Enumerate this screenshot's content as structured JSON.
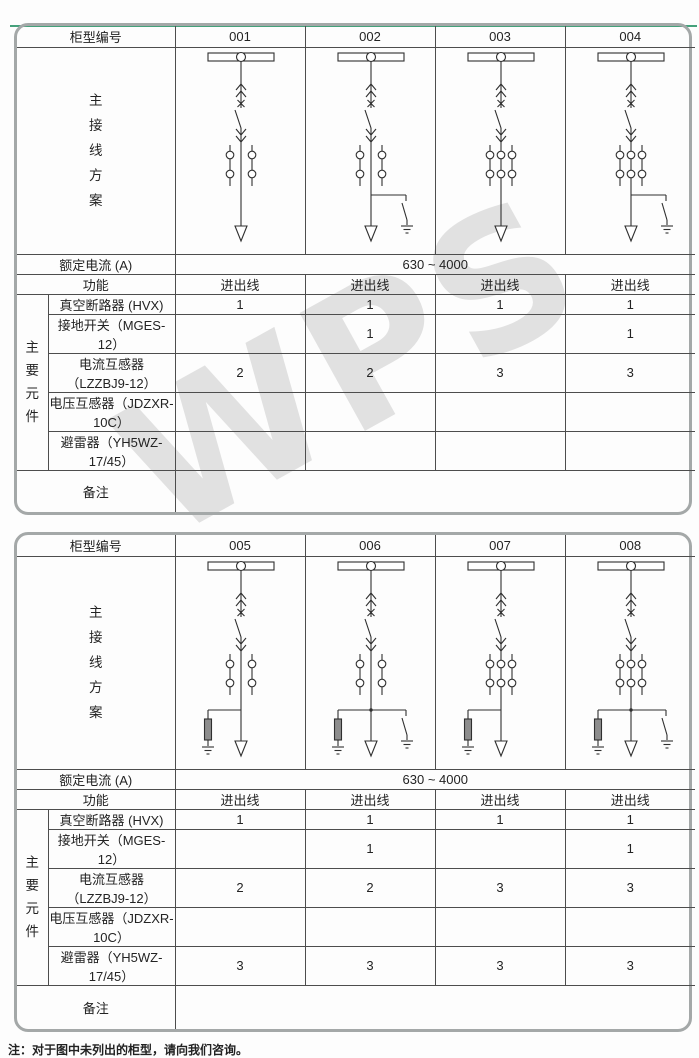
{
  "page": {
    "watermark_text": "WPS",
    "accent_color": "#45a17b",
    "footnote": "注：对于图中未列出的柜型，请向我们咨询。"
  },
  "labels": {
    "cabinet_no": "柜型编号",
    "main_scheme": "主接线方案",
    "rated_current": "额定电流 (A)",
    "rated_current_value": "630 ~ 4000",
    "function": "功能",
    "main_components": "主要元件",
    "remarks": "备注"
  },
  "component_names": [
    "真空断路器 (HVX)",
    "接地开关（MGES-12）",
    "电流互感器（LZZBJ9-12）",
    "电压互感器（JDZXR-10C）",
    "避雷器（YH5WZ-17/45）"
  ],
  "tables": [
    {
      "cabinets": [
        "001",
        "002",
        "003",
        "004"
      ],
      "function_values": [
        "进出线",
        "进出线",
        "进出线",
        "进出线"
      ],
      "rated_current_value": "630 ~ 4000",
      "diagrams": [
        {
          "name": "incoming-outgoing-feeder",
          "cts": 2,
          "earthing_switch": false,
          "arrester": false
        },
        {
          "name": "feeder-with-earthing-switch",
          "cts": 2,
          "earthing_switch": true,
          "arrester": false
        },
        {
          "name": "incoming-outgoing-feeder",
          "cts": 3,
          "earthing_switch": false,
          "arrester": false
        },
        {
          "name": "feeder-with-earthing-switch",
          "cts": 3,
          "earthing_switch": true,
          "arrester": false
        }
      ],
      "component_values": [
        [
          "1",
          "1",
          "1",
          "1"
        ],
        [
          "",
          "1",
          "",
          "1"
        ],
        [
          "2",
          "2",
          "3",
          "3"
        ],
        [
          "",
          "",
          "",
          ""
        ],
        [
          "",
          "",
          "",
          ""
        ]
      ],
      "remarks": ""
    },
    {
      "cabinets": [
        "005",
        "006",
        "007",
        "008"
      ],
      "function_values": [
        "进出线",
        "进出线",
        "进出线",
        "进出线"
      ],
      "rated_current_value": "630 ~ 4000",
      "diagrams": [
        {
          "name": "feeder-with-arrester",
          "cts": 2,
          "earthing_switch": false,
          "arrester": true
        },
        {
          "name": "feeder-with-arrester-and-earthing-switch",
          "cts": 2,
          "earthing_switch": true,
          "arrester": true
        },
        {
          "name": "feeder-with-arrester",
          "cts": 3,
          "earthing_switch": false,
          "arrester": true
        },
        {
          "name": "feeder-with-arrester-and-earthing-switch",
          "cts": 3,
          "earthing_switch": true,
          "arrester": true
        }
      ],
      "component_values": [
        [
          "1",
          "1",
          "1",
          "1"
        ],
        [
          "",
          "1",
          "",
          "1"
        ],
        [
          "2",
          "2",
          "3",
          "3"
        ],
        [
          "",
          "",
          "",
          ""
        ],
        [
          "3",
          "3",
          "3",
          "3"
        ]
      ],
      "remarks": ""
    }
  ]
}
